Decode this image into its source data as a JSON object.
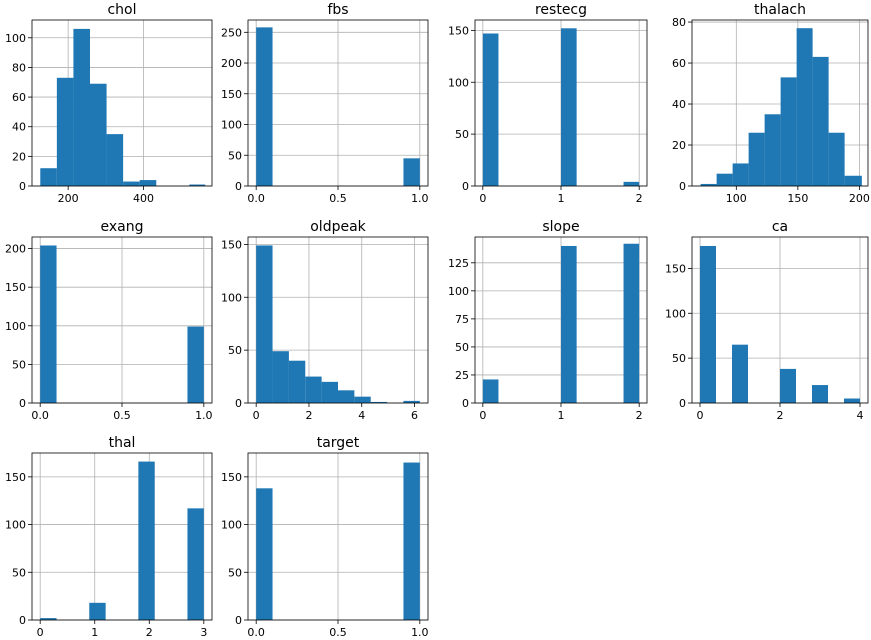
{
  "chart_data": [
    {
      "type": "bar",
      "title": "chol",
      "xlim": [
        104,
        582
      ],
      "ylim": [
        0,
        112
      ],
      "xticks": [
        200,
        400
      ],
      "xtick_labels": [
        "200",
        "400"
      ],
      "yticks": [
        0,
        20,
        40,
        60,
        80,
        100
      ],
      "ytick_labels": [
        "0",
        "20",
        "40",
        "60",
        "80",
        "100"
      ],
      "bins": [
        [
          126,
          170
        ],
        [
          170,
          214
        ],
        [
          214,
          258
        ],
        [
          258,
          302
        ],
        [
          302,
          346
        ],
        [
          346,
          390
        ],
        [
          390,
          434
        ],
        [
          434,
          478
        ],
        [
          478,
          522
        ],
        [
          522,
          564
        ]
      ],
      "values": [
        12,
        73,
        106,
        69,
        35,
        3,
        4,
        0,
        0,
        1
      ],
      "color": "#1f77b4",
      "grid": true
    },
    {
      "type": "bar",
      "title": "fbs",
      "xlim": [
        -0.05,
        1.05
      ],
      "ylim": [
        0,
        270
      ],
      "xticks": [
        0,
        0.5,
        1
      ],
      "xtick_labels": [
        "0.0",
        "0.5",
        "1.0"
      ],
      "yticks": [
        0,
        50,
        100,
        150,
        200,
        250
      ],
      "ytick_labels": [
        "0",
        "50",
        "100",
        "150",
        "200",
        "250"
      ],
      "bins": [
        [
          0,
          0.1
        ],
        [
          0.1,
          0.2
        ],
        [
          0.2,
          0.3
        ],
        [
          0.3,
          0.4
        ],
        [
          0.4,
          0.5
        ],
        [
          0.5,
          0.6
        ],
        [
          0.6,
          0.7
        ],
        [
          0.7,
          0.8
        ],
        [
          0.8,
          0.9
        ],
        [
          0.9,
          1.0
        ]
      ],
      "values": [
        258,
        0,
        0,
        0,
        0,
        0,
        0,
        0,
        0,
        45
      ],
      "color": "#1f77b4",
      "grid": true
    },
    {
      "type": "bar",
      "title": "restecg",
      "xlim": [
        -0.1,
        2.1
      ],
      "ylim": [
        0,
        160
      ],
      "xticks": [
        0,
        1,
        2
      ],
      "xtick_labels": [
        "0",
        "1",
        "2"
      ],
      "yticks": [
        0,
        50,
        100,
        150
      ],
      "ytick_labels": [
        "0",
        "50",
        "100",
        "150"
      ],
      "bins": [
        [
          0,
          0.2
        ],
        [
          0.2,
          0.4
        ],
        [
          0.4,
          0.6
        ],
        [
          0.6,
          0.8
        ],
        [
          0.8,
          1.0
        ],
        [
          1.0,
          1.2
        ],
        [
          1.2,
          1.4
        ],
        [
          1.4,
          1.6
        ],
        [
          1.6,
          1.8
        ],
        [
          1.8,
          2.0
        ]
      ],
      "values": [
        147,
        0,
        0,
        0,
        0,
        152,
        0,
        0,
        0,
        4
      ],
      "color": "#1f77b4",
      "grid": true
    },
    {
      "type": "bar",
      "title": "thalach",
      "xlim": [
        64,
        207
      ],
      "ylim": [
        0,
        81
      ],
      "xticks": [
        100,
        150,
        200
      ],
      "xtick_labels": [
        "100",
        "150",
        "200"
      ],
      "yticks": [
        0,
        20,
        40,
        60,
        80
      ],
      "ytick_labels": [
        "0",
        "20",
        "40",
        "60",
        "80"
      ],
      "bins": [
        [
          71,
          84
        ],
        [
          84,
          97
        ],
        [
          97,
          110
        ],
        [
          110,
          123
        ],
        [
          123,
          136
        ],
        [
          136,
          149
        ],
        [
          149,
          162
        ],
        [
          162,
          175
        ],
        [
          175,
          188
        ],
        [
          188,
          202
        ]
      ],
      "values": [
        1,
        6,
        11,
        26,
        35,
        53,
        77,
        63,
        26,
        5
      ],
      "color": "#1f77b4",
      "grid": true
    },
    {
      "type": "bar",
      "title": "exang",
      "xlim": [
        -0.05,
        1.05
      ],
      "ylim": [
        0,
        215
      ],
      "xticks": [
        0,
        0.5,
        1
      ],
      "xtick_labels": [
        "0.0",
        "0.5",
        "1.0"
      ],
      "yticks": [
        0,
        50,
        100,
        150,
        200
      ],
      "ytick_labels": [
        "0",
        "50",
        "100",
        "150",
        "200"
      ],
      "bins": [
        [
          0,
          0.1
        ],
        [
          0.1,
          0.2
        ],
        [
          0.2,
          0.3
        ],
        [
          0.3,
          0.4
        ],
        [
          0.4,
          0.5
        ],
        [
          0.5,
          0.6
        ],
        [
          0.6,
          0.7
        ],
        [
          0.7,
          0.8
        ],
        [
          0.8,
          0.9
        ],
        [
          0.9,
          1.0
        ]
      ],
      "values": [
        204,
        0,
        0,
        0,
        0,
        0,
        0,
        0,
        0,
        99
      ],
      "color": "#1f77b4",
      "grid": true
    },
    {
      "type": "bar",
      "title": "oldpeak",
      "xlim": [
        -0.31,
        6.51
      ],
      "ylim": [
        0,
        157
      ],
      "xticks": [
        0,
        2,
        4,
        6
      ],
      "xtick_labels": [
        "0",
        "2",
        "4",
        "6"
      ],
      "yticks": [
        0,
        50,
        100,
        150
      ],
      "ytick_labels": [
        "0",
        "50",
        "100",
        "150"
      ],
      "bins": [
        [
          0,
          0.62
        ],
        [
          0.62,
          1.24
        ],
        [
          1.24,
          1.86
        ],
        [
          1.86,
          2.48
        ],
        [
          2.48,
          3.1
        ],
        [
          3.1,
          3.72
        ],
        [
          3.72,
          4.34
        ],
        [
          4.34,
          4.96
        ],
        [
          4.96,
          5.58
        ],
        [
          5.58,
          6.2
        ]
      ],
      "values": [
        149,
        49,
        40,
        25,
        20,
        12,
        6,
        1,
        0,
        2
      ],
      "color": "#1f77b4",
      "grid": true
    },
    {
      "type": "bar",
      "title": "slope",
      "xlim": [
        -0.1,
        2.1
      ],
      "ylim": [
        0,
        148
      ],
      "xticks": [
        0,
        1,
        2
      ],
      "xtick_labels": [
        "0",
        "1",
        "2"
      ],
      "yticks": [
        0,
        25,
        50,
        75,
        100,
        125
      ],
      "ytick_labels": [
        "0",
        "25",
        "50",
        "75",
        "100",
        "125"
      ],
      "bins": [
        [
          0,
          0.2
        ],
        [
          0.2,
          0.4
        ],
        [
          0.4,
          0.6
        ],
        [
          0.6,
          0.8
        ],
        [
          0.8,
          1.0
        ],
        [
          1.0,
          1.2
        ],
        [
          1.2,
          1.4
        ],
        [
          1.4,
          1.6
        ],
        [
          1.6,
          1.8
        ],
        [
          1.8,
          2.0
        ]
      ],
      "values": [
        21,
        0,
        0,
        0,
        0,
        140,
        0,
        0,
        0,
        142
      ],
      "color": "#1f77b4",
      "grid": true
    },
    {
      "type": "bar",
      "title": "ca",
      "xlim": [
        -0.2,
        4.2
      ],
      "ylim": [
        0,
        185
      ],
      "xticks": [
        0,
        2,
        4
      ],
      "xtick_labels": [
        "0",
        "2",
        "4"
      ],
      "yticks": [
        0,
        50,
        100,
        150
      ],
      "ytick_labels": [
        "0",
        "50",
        "100",
        "150"
      ],
      "bins": [
        [
          0,
          0.4
        ],
        [
          0.4,
          0.8
        ],
        [
          0.8,
          1.2
        ],
        [
          1.2,
          1.6
        ],
        [
          1.6,
          2.0
        ],
        [
          2.0,
          2.4
        ],
        [
          2.4,
          2.8
        ],
        [
          2.8,
          3.2
        ],
        [
          3.2,
          3.6
        ],
        [
          3.6,
          4.0
        ]
      ],
      "values": [
        175,
        0,
        65,
        0,
        0,
        38,
        0,
        20,
        0,
        5
      ],
      "color": "#1f77b4",
      "grid": true
    },
    {
      "type": "bar",
      "title": "thal",
      "xlim": [
        -0.15,
        3.15
      ],
      "ylim": [
        0,
        175
      ],
      "xticks": [
        0,
        1,
        2,
        3
      ],
      "xtick_labels": [
        "0",
        "1",
        "2",
        "3"
      ],
      "yticks": [
        0,
        50,
        100,
        150
      ],
      "ytick_labels": [
        "0",
        "50",
        "100",
        "150"
      ],
      "bins": [
        [
          0,
          0.3
        ],
        [
          0.3,
          0.6
        ],
        [
          0.6,
          0.9
        ],
        [
          0.9,
          1.2
        ],
        [
          1.2,
          1.5
        ],
        [
          1.5,
          1.8
        ],
        [
          1.8,
          2.1
        ],
        [
          2.1,
          2.4
        ],
        [
          2.4,
          2.7
        ],
        [
          2.7,
          3.0
        ]
      ],
      "values": [
        2,
        0,
        0,
        18,
        0,
        0,
        166,
        0,
        0,
        117
      ],
      "color": "#1f77b4",
      "grid": true
    },
    {
      "type": "bar",
      "title": "target",
      "xlim": [
        -0.05,
        1.05
      ],
      "ylim": [
        0,
        175
      ],
      "xticks": [
        0,
        0.5,
        1
      ],
      "xtick_labels": [
        "0.0",
        "0.5",
        "1.0"
      ],
      "yticks": [
        0,
        50,
        100,
        150
      ],
      "ytick_labels": [
        "0",
        "50",
        "100",
        "150"
      ],
      "bins": [
        [
          0,
          0.1
        ],
        [
          0.1,
          0.2
        ],
        [
          0.2,
          0.3
        ],
        [
          0.3,
          0.4
        ],
        [
          0.4,
          0.5
        ],
        [
          0.5,
          0.6
        ],
        [
          0.6,
          0.7
        ],
        [
          0.7,
          0.8
        ],
        [
          0.8,
          0.9
        ],
        [
          0.9,
          1.0
        ]
      ],
      "values": [
        138,
        0,
        0,
        0,
        0,
        0,
        0,
        0,
        0,
        165
      ],
      "color": "#1f77b4",
      "grid": true
    }
  ]
}
